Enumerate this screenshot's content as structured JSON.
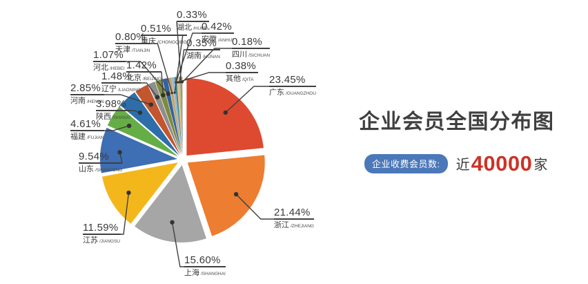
{
  "title": "企业会员全国分布图",
  "summary": {
    "badge_label": "企业收费会员数:",
    "prefix": "近",
    "count": "40000",
    "suffix": "家"
  },
  "colors": {
    "badge_bg": "#4B78B9",
    "count_red": "#CD3226",
    "text_dark": "#3F3F3F",
    "leader_line": "#3F3F3F"
  },
  "chart_data": {
    "type": "pie",
    "title": "企业会员全国分布图",
    "value_unit": "%",
    "start_angle_deg": 0,
    "direction": "clockwise",
    "exploded": true,
    "legend_position": "none",
    "label_format": "percent + region name + pinyin",
    "slices": [
      {
        "name": "广东",
        "pinyin": "GUANGZHOU",
        "value": 23.45,
        "color": "#DE4A2F"
      },
      {
        "name": "浙江",
        "pinyin": "ZHEJIANG",
        "value": 21.44,
        "color": "#ED7D31"
      },
      {
        "name": "上海",
        "pinyin": "SHANGHAI",
        "value": 15.6,
        "color": "#A6A6A6"
      },
      {
        "name": "江苏",
        "pinyin": "JIANGSU",
        "value": 11.59,
        "color": "#F3B71C"
      },
      {
        "name": "山东",
        "pinyin": "SHANDONG",
        "value": 9.54,
        "color": "#3E6EB4"
      },
      {
        "name": "福建",
        "pinyin": "FUJIAN",
        "value": 4.61,
        "color": "#65AE45"
      },
      {
        "name": "陕西",
        "pinyin": "SHANXI",
        "value": 3.98,
        "color": "#2D6EAA"
      },
      {
        "name": "河南",
        "pinyin": "HENAN",
        "value": 2.85,
        "color": "#C2562E"
      },
      {
        "name": "辽宁",
        "pinyin": "LIAONING",
        "value": 1.48,
        "color": "#8E8E8E"
      },
      {
        "name": "北京",
        "pinyin": "BEIJING",
        "value": 1.42,
        "color": "#7E8B3E"
      },
      {
        "name": "河北",
        "pinyin": "HEBEI",
        "value": 1.07,
        "color": "#34639E"
      },
      {
        "name": "天津",
        "pinyin": "TIANJIN",
        "value": 0.8,
        "color": "#C7A46E"
      },
      {
        "name": "重庆",
        "pinyin": "CHONGQING",
        "value": 0.51,
        "color": "#8EB4D9"
      },
      {
        "name": "安徽",
        "pinyin": "ANHUI",
        "value": 0.42,
        "color": "#2E8B8B"
      },
      {
        "name": "其他",
        "pinyin": "QITA",
        "value": 0.38,
        "color": "#F4B183"
      },
      {
        "name": "湖南",
        "pinyin": "HUNAN",
        "value": 0.35,
        "color": "#BFBF6B"
      },
      {
        "name": "湖北",
        "pinyin": "HUBEI",
        "value": 0.33,
        "color": "#6A8FC2"
      },
      {
        "name": "四川",
        "pinyin": "SICHUAN",
        "value": 0.18,
        "color": "#E2C9A5"
      }
    ]
  }
}
